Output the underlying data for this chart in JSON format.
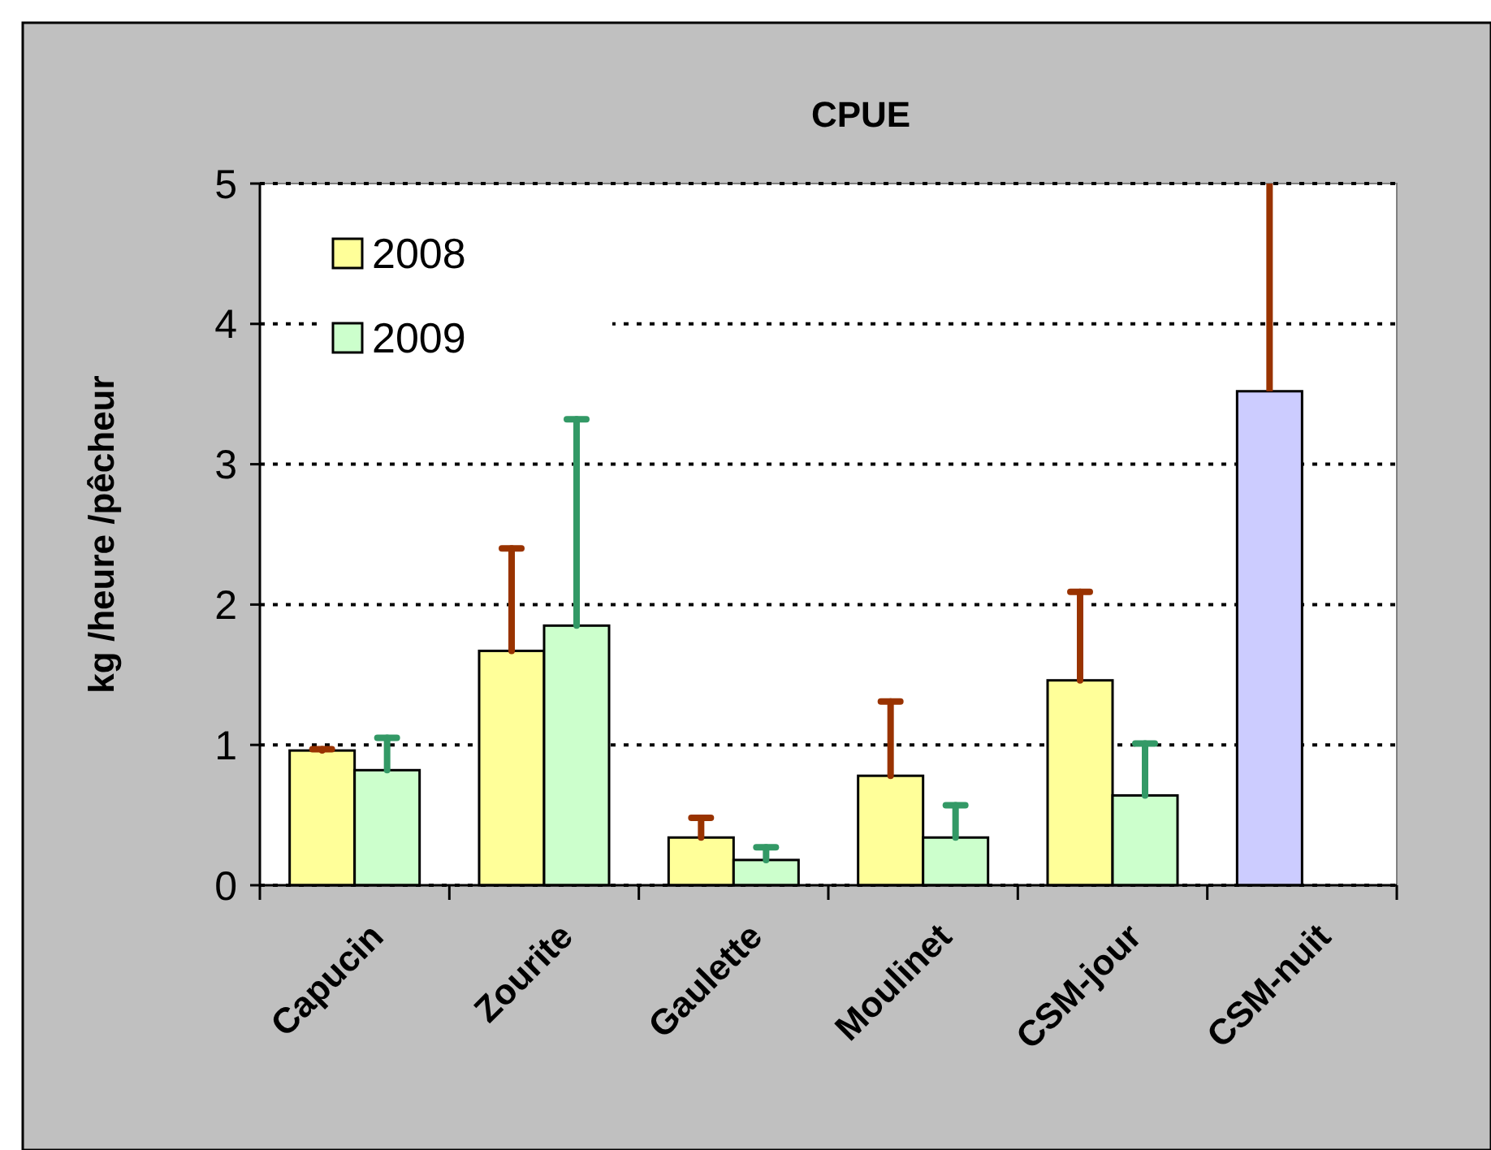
{
  "chart_data": {
    "type": "bar",
    "title": "CPUE",
    "ylabel": "kg /heure /pêcheur",
    "categories": [
      "Capucin",
      "Zourite",
      "Gaulette",
      "Moulinet",
      "CSM-jour",
      "CSM-nuit"
    ],
    "series": [
      {
        "name": "2008",
        "color": "#ffff99",
        "colors": [
          "#ffff99",
          "#ffff99",
          "#ffff99",
          "#ffff99",
          "#ffff99",
          "#ccccff"
        ],
        "values": [
          0.96,
          1.67,
          0.34,
          0.78,
          1.46,
          3.52
        ],
        "errors": [
          [
            0.96,
            0.97
          ],
          [
            1.67,
            2.4
          ],
          [
            0.34,
            0.48
          ],
          [
            0.78,
            1.31
          ],
          [
            1.46,
            2.09
          ],
          [
            3.52,
            5.0
          ]
        ]
      },
      {
        "name": "2009",
        "color": "#ccffcc",
        "values": [
          0.82,
          1.85,
          0.18,
          0.34,
          0.64,
          null
        ],
        "errors": [
          [
            0.82,
            1.05
          ],
          [
            1.85,
            3.32
          ],
          [
            0.18,
            0.27
          ],
          [
            0.34,
            0.57
          ],
          [
            0.64,
            1.01
          ],
          null
        ]
      }
    ],
    "ylim": [
      0,
      5
    ],
    "yticks": [
      0,
      1,
      2,
      3,
      4,
      5
    ],
    "grid": "y",
    "legend": "top left"
  }
}
